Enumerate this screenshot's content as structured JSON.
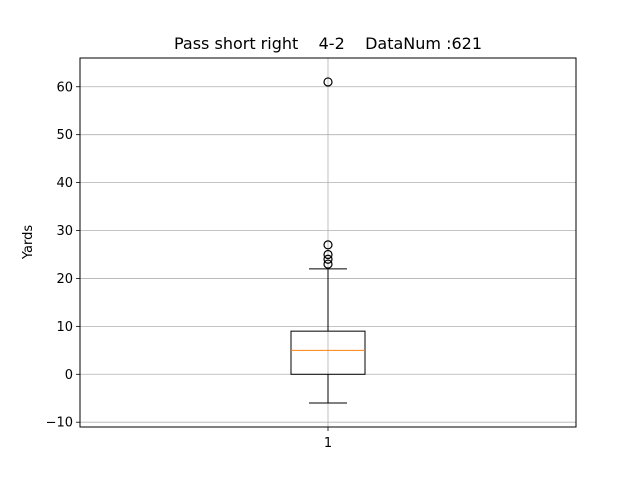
{
  "chart_data": {
    "type": "box",
    "title": "Pass short right    4-2    DataNum :621",
    "xlabel": "",
    "ylabel": "Yards",
    "categories": [
      "1"
    ],
    "ylim": [
      -11,
      66
    ],
    "yticks": [
      -10,
      0,
      10,
      20,
      30,
      40,
      50,
      60
    ],
    "ytick_labels": [
      "−10",
      "0",
      "10",
      "20",
      "30",
      "40",
      "50",
      "60"
    ],
    "grid": true,
    "boxes": [
      {
        "category": "1",
        "whisker_low": -6,
        "q1": 0,
        "median": 5,
        "q3": 9,
        "whisker_high": 22,
        "outliers": [
          23,
          24,
          25,
          27,
          61
        ]
      }
    ],
    "colors": {
      "box": "#000000",
      "median": "#ff7f0e",
      "grid": "#b0b0b0"
    }
  }
}
